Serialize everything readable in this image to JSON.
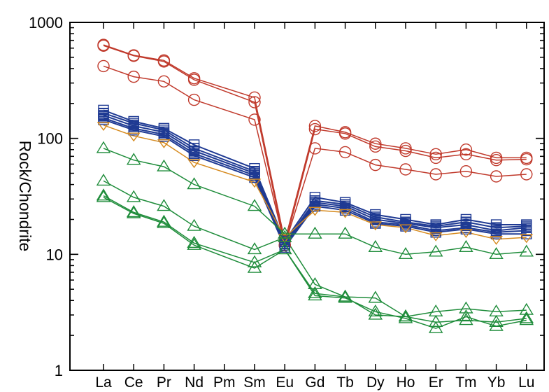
{
  "chart_data": {
    "type": "line",
    "title": "",
    "xlabel": "",
    "ylabel": "Rock/Chondrite",
    "yscale": "log",
    "ylim": [
      1,
      1000
    ],
    "yticks": [
      {
        "value": 1,
        "label": "1"
      },
      {
        "value": 10,
        "label": "10"
      },
      {
        "value": 100,
        "label": "100"
      },
      {
        "value": 1000,
        "label": "1000"
      }
    ],
    "categories": [
      "La",
      "Ce",
      "Pr",
      "Nd",
      "Pm",
      "Sm",
      "Eu",
      "Gd",
      "Tb",
      "Dy",
      "Ho",
      "Er",
      "Tm",
      "Yb",
      "Lu"
    ],
    "grid": false,
    "legend": "none",
    "series": [
      {
        "marker": "circle",
        "color": "#c0392b",
        "values": [
          640,
          520,
          470,
          330,
          null,
          225,
          13,
          128,
          113,
          90,
          82,
          73,
          80,
          68,
          68
        ]
      },
      {
        "marker": "circle",
        "color": "#c0392b",
        "values": [
          630,
          515,
          460,
          320,
          null,
          205,
          12,
          120,
          110,
          85,
          78,
          68,
          73,
          65,
          66
        ]
      },
      {
        "marker": "circle",
        "color": "#c0392b",
        "values": [
          420,
          340,
          310,
          215,
          null,
          145,
          12,
          82,
          76,
          59,
          54,
          49,
          52,
          47,
          49
        ]
      },
      {
        "marker": "square",
        "color": "#1f3a93",
        "values": [
          175,
          140,
          122,
          88,
          null,
          55,
          13,
          31,
          28,
          22,
          20,
          18,
          20,
          18,
          18
        ]
      },
      {
        "marker": "square",
        "color": "#1f3a93",
        "values": [
          165,
          135,
          118,
          82,
          null,
          52,
          12.5,
          29,
          27,
          21,
          19,
          17.5,
          19,
          17,
          17.5
        ]
      },
      {
        "marker": "square",
        "color": "#1f3a93",
        "values": [
          158,
          128,
          113,
          78,
          null,
          50,
          12,
          28,
          26,
          20,
          18.5,
          17,
          18,
          16,
          17
        ]
      },
      {
        "marker": "square",
        "color": "#1f3a93",
        "values": [
          150,
          122,
          108,
          74,
          null,
          48,
          12,
          27,
          25,
          19,
          18,
          16,
          17,
          15.5,
          16
        ]
      },
      {
        "marker": "square",
        "color": "#1f3a93",
        "values": [
          145,
          118,
          104,
          71,
          null,
          46,
          11.5,
          26,
          24,
          18.5,
          17.5,
          15.5,
          16.5,
          15,
          15
        ]
      },
      {
        "marker": "diamond",
        "color": "#d68a1e",
        "values": [
          130,
          105,
          92,
          62,
          null,
          42,
          14,
          24,
          23,
          18,
          17,
          14.5,
          15.5,
          13.5,
          14
        ]
      },
      {
        "marker": "triangle",
        "color": "#1e8c3a",
        "values": [
          82,
          65,
          57,
          40,
          null,
          26,
          15,
          15,
          15,
          11.5,
          10,
          10.5,
          11.5,
          10,
          10.5
        ]
      },
      {
        "marker": "triangle",
        "color": "#1e8c3a",
        "values": [
          43,
          31,
          26,
          17.5,
          null,
          11,
          14,
          5.5,
          4.3,
          4.2,
          2.9,
          3.2,
          3.4,
          3.2,
          3.3
        ]
      },
      {
        "marker": "triangle",
        "color": "#1e8c3a",
        "values": [
          32,
          23,
          19,
          12.5,
          null,
          8.5,
          11,
          4.6,
          4.3,
          3.0,
          2.9,
          2.6,
          2.7,
          2.6,
          2.8
        ]
      },
      {
        "marker": "triangle",
        "color": "#1e8c3a",
        "values": [
          31,
          22.5,
          18.5,
          12,
          null,
          7.6,
          11,
          4.4,
          4.2,
          3.2,
          2.8,
          2.3,
          2.9,
          2.4,
          2.7
        ]
      }
    ]
  }
}
